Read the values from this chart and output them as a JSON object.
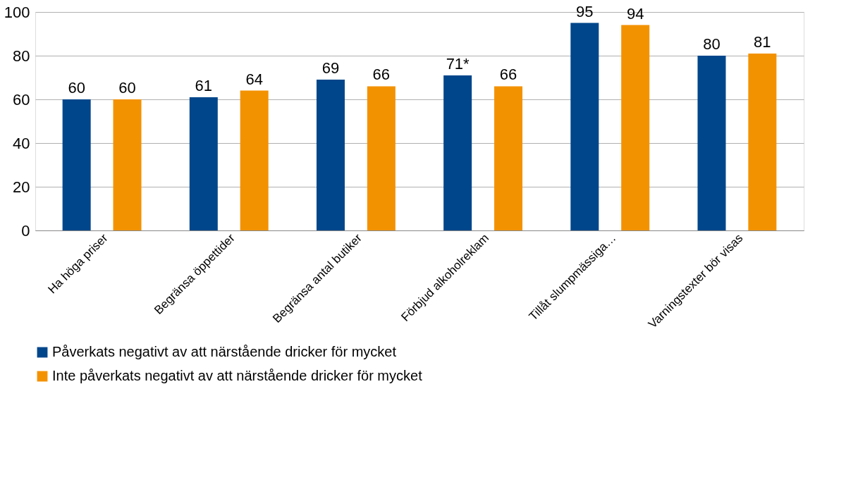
{
  "chart_data": {
    "type": "bar",
    "categories": [
      "Ha höga priser",
      "Begränsa öppettider",
      "Begränsa antal butiker",
      "Förbjud alkoholreklam",
      "Tillåt slumpmässiga…",
      "Varningstexter  bör visas"
    ],
    "series": [
      {
        "name": "Påverkats negativt av att närstående dricker för mycket",
        "color": "#00468b",
        "values": [
          60,
          61,
          69,
          71,
          95,
          80
        ],
        "value_labels": [
          "60",
          "61",
          "69",
          "71*",
          "95",
          "80"
        ]
      },
      {
        "name": "Inte påverkats negativt av att närstående dricker för mycket",
        "color": "#f39200",
        "values": [
          60,
          64,
          66,
          66,
          94,
          81
        ],
        "value_labels": [
          "60",
          "64",
          "66",
          "66",
          "94",
          "81"
        ]
      }
    ],
    "ylim": [
      0,
      100
    ],
    "yticks": [
      0,
      20,
      40,
      60,
      80,
      100
    ],
    "grid": "y",
    "legend": "bottom"
  }
}
